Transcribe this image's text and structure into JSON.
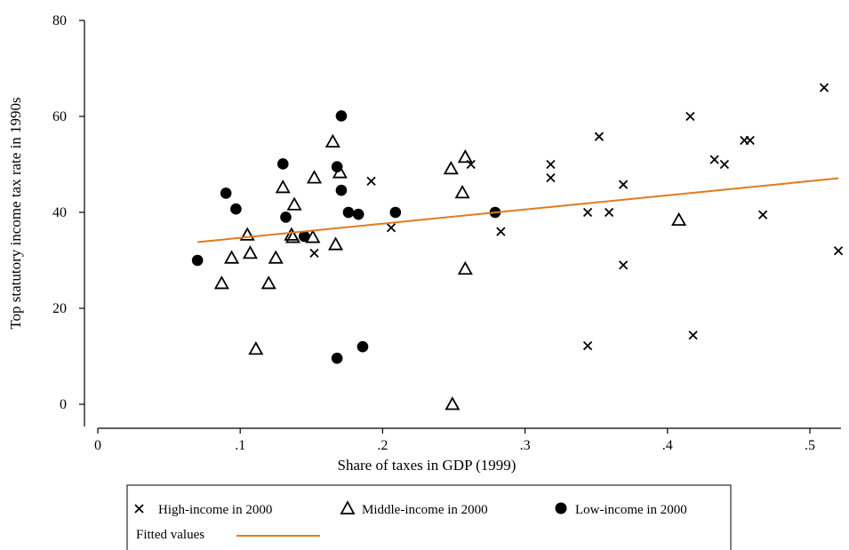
{
  "chart_data": {
    "type": "scatter",
    "xlabel": "Share of taxes in GDP (1999)",
    "ylabel": "Top statutory income tax rate in 1990s",
    "xlim": [
      0,
      0.52
    ],
    "ylim": [
      0,
      80
    ],
    "x_ticks": [
      0,
      0.1,
      0.2,
      0.3,
      0.4,
      0.5
    ],
    "x_tick_labels": [
      "0",
      ".1",
      ".2",
      ".3",
      ".4",
      ".5"
    ],
    "y_ticks": [
      0,
      20,
      40,
      60,
      80
    ],
    "y_tick_labels": [
      "0",
      "20",
      "40",
      "60",
      "80"
    ],
    "grid": false,
    "legend_position": "bottom",
    "series": [
      {
        "name": "High-income in 2000",
        "marker": "x",
        "color": "#000000",
        "points": [
          [
            0.152,
            31.5
          ],
          [
            0.192,
            46.5
          ],
          [
            0.206,
            36.8
          ],
          [
            0.262,
            50
          ],
          [
            0.283,
            36
          ],
          [
            0.318,
            50
          ],
          [
            0.318,
            47.2
          ],
          [
            0.344,
            40
          ],
          [
            0.344,
            12.2
          ],
          [
            0.352,
            55.8
          ],
          [
            0.359,
            40
          ],
          [
            0.369,
            45.8
          ],
          [
            0.369,
            29
          ],
          [
            0.416,
            60
          ],
          [
            0.418,
            14.4
          ],
          [
            0.433,
            51
          ],
          [
            0.44,
            50
          ],
          [
            0.454,
            55
          ],
          [
            0.458,
            55
          ],
          [
            0.467,
            39.5
          ],
          [
            0.51,
            66
          ],
          [
            0.52,
            32
          ]
        ]
      },
      {
        "name": "Middle-income in 2000",
        "marker": "triangle",
        "color": "#000000",
        "points": [
          [
            0.087,
            25.2
          ],
          [
            0.094,
            30.5
          ],
          [
            0.105,
            35.3
          ],
          [
            0.107,
            31.5
          ],
          [
            0.111,
            11.5
          ],
          [
            0.12,
            25.2
          ],
          [
            0.125,
            30.5
          ],
          [
            0.13,
            45.2
          ],
          [
            0.136,
            35.3
          ],
          [
            0.137,
            34.8
          ],
          [
            0.138,
            41.6
          ],
          [
            0.151,
            34.8
          ],
          [
            0.152,
            47.2
          ],
          [
            0.165,
            54.7
          ],
          [
            0.167,
            33.3
          ],
          [
            0.17,
            48.3
          ],
          [
            0.248,
            49.1
          ],
          [
            0.249,
            0
          ],
          [
            0.256,
            44.1
          ],
          [
            0.258,
            51.5
          ],
          [
            0.258,
            28.2
          ],
          [
            0.408,
            38.4
          ]
        ]
      },
      {
        "name": "Low-income in 2000",
        "marker": "circle",
        "color": "#000000",
        "points": [
          [
            0.07,
            30
          ],
          [
            0.09,
            44
          ],
          [
            0.097,
            40.7
          ],
          [
            0.13,
            50.1
          ],
          [
            0.132,
            39
          ],
          [
            0.145,
            35
          ],
          [
            0.168,
            49.5
          ],
          [
            0.168,
            9.6
          ],
          [
            0.171,
            60.1
          ],
          [
            0.171,
            44.6
          ],
          [
            0.176,
            40
          ],
          [
            0.183,
            39.6
          ],
          [
            0.186,
            12
          ],
          [
            0.209,
            40
          ],
          [
            0.279,
            40
          ]
        ]
      }
    ],
    "fitted_values": {
      "name": "Fitted values",
      "color": "#E07B1E",
      "line": [
        [
          0.07,
          33.8
        ],
        [
          0.52,
          47.1
        ]
      ]
    }
  }
}
